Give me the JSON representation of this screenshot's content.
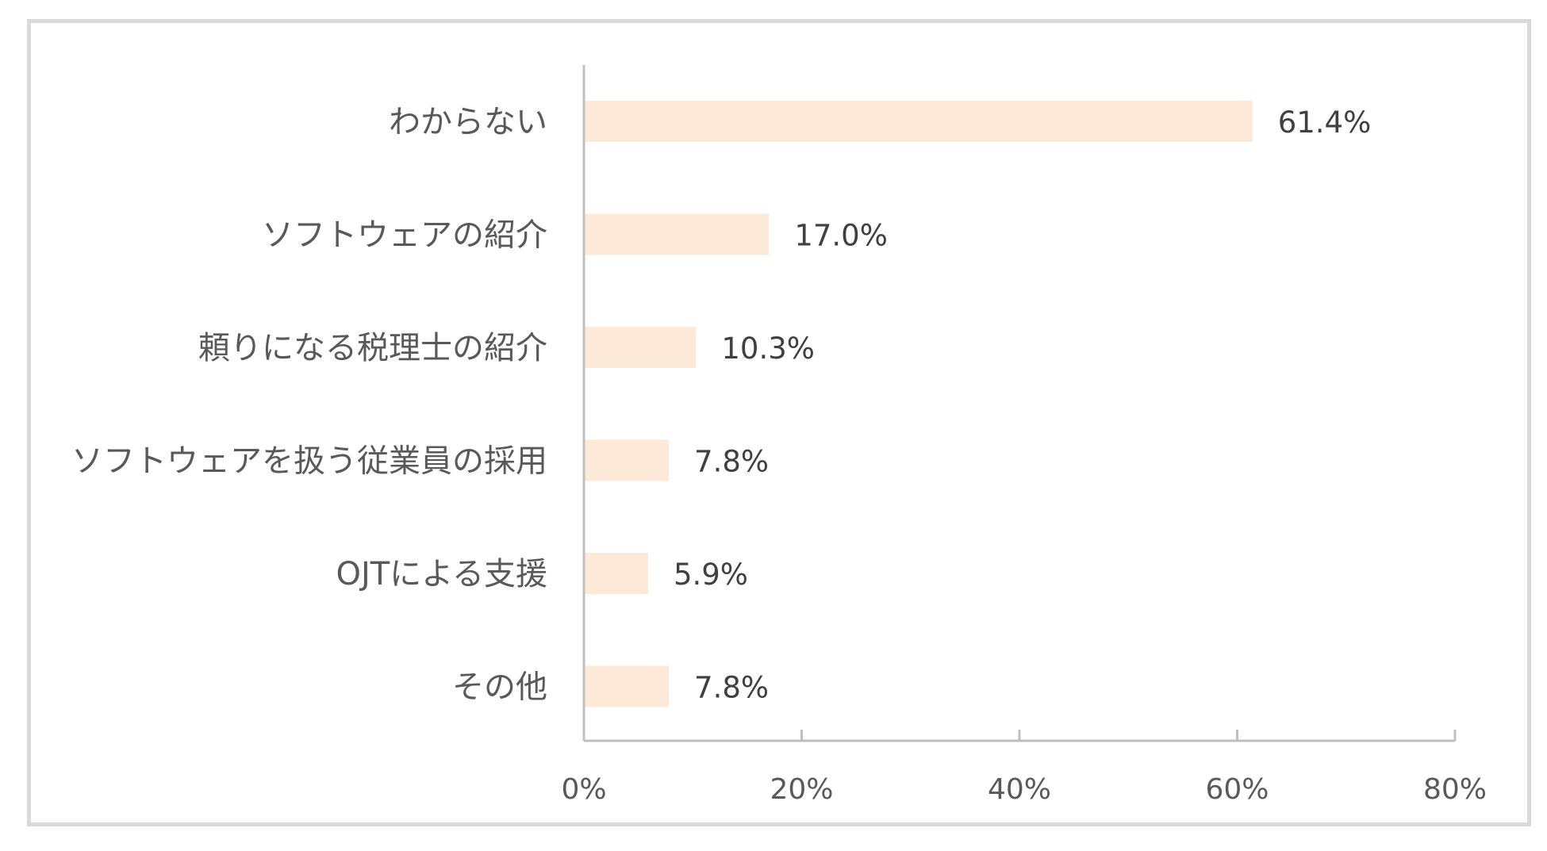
{
  "chart_data": {
    "type": "bar",
    "orientation": "horizontal",
    "categories": [
      "わからない",
      "ソフトウェアの紹介",
      "頼りになる税理士の紹介",
      "ソフトウェアを扱う従業員の採用",
      "OJTによる支援",
      "その他"
    ],
    "values": [
      61.4,
      17.0,
      10.3,
      7.8,
      5.9,
      7.8
    ],
    "value_labels": [
      "61.4%",
      "17.0%",
      "10.3%",
      "7.8%",
      "5.9%",
      "7.8%"
    ],
    "xlim": [
      0,
      80
    ],
    "xticks": [
      0,
      20,
      40,
      60,
      80
    ],
    "xtick_labels": [
      "0%",
      "20%",
      "40%",
      "60%",
      "80%"
    ],
    "title": "",
    "xlabel": "",
    "ylabel": "",
    "grid": false,
    "legend": "none",
    "colors": {
      "bar": "#fce9d8",
      "axis": "#bfbfbf",
      "frame": "#d9d9d9",
      "category_text": "#595959",
      "value_text": "#404040"
    }
  }
}
